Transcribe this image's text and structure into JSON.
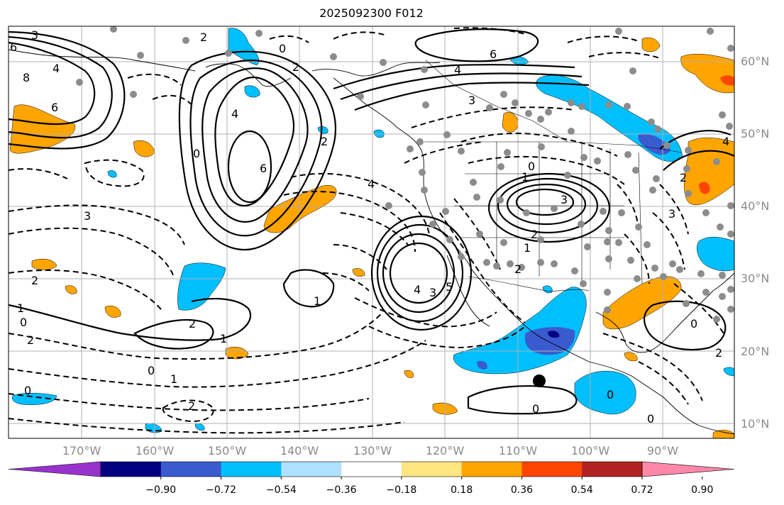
{
  "title": "2025092300 F012",
  "lat_labels": [
    {
      "label": "60°N"
    },
    {
      "label": "50°N"
    },
    {
      "label": "40°N"
    },
    {
      "label": "30°N"
    },
    {
      "label": "20°N"
    },
    {
      "label": "10°N"
    }
  ],
  "lon_labels": [
    {
      "label": "170°W"
    },
    {
      "label": "160°W"
    },
    {
      "label": "150°W"
    },
    {
      "label": "140°W"
    },
    {
      "label": "130°W"
    },
    {
      "label": "120°W"
    },
    {
      "label": "110°W"
    },
    {
      "label": "100°W"
    },
    {
      "label": "90°W"
    }
  ],
  "colorbar": {
    "colors": [
      "#9932cc",
      "#000080",
      "#3a5bd0",
      "#00bfff",
      "#b0e0ff",
      "#ffffff",
      "#ffe680",
      "#ffa500",
      "#ff4500",
      "#b22222",
      "#ff88aa"
    ],
    "ticks": [
      "−0.90",
      "−0.72",
      "−0.54",
      "−0.36",
      "−0.18",
      "0.18",
      "0.36",
      "0.54",
      "0.72",
      "0.90"
    ]
  },
  "contour_labels": [
    "3",
    "2",
    "0",
    "6",
    "8",
    "4",
    "6",
    "2",
    "4",
    "6",
    "2",
    "0",
    "4",
    "3",
    "4",
    "3",
    "2",
    "1",
    "0",
    "3",
    "2",
    "1",
    "4",
    "3",
    "5",
    "2",
    "1",
    "0",
    "2",
    "0",
    "0",
    "1",
    "2",
    "0",
    "0",
    "2",
    "0",
    "1",
    "2",
    "6",
    "4",
    "3",
    "2",
    "0",
    "1"
  ]
}
